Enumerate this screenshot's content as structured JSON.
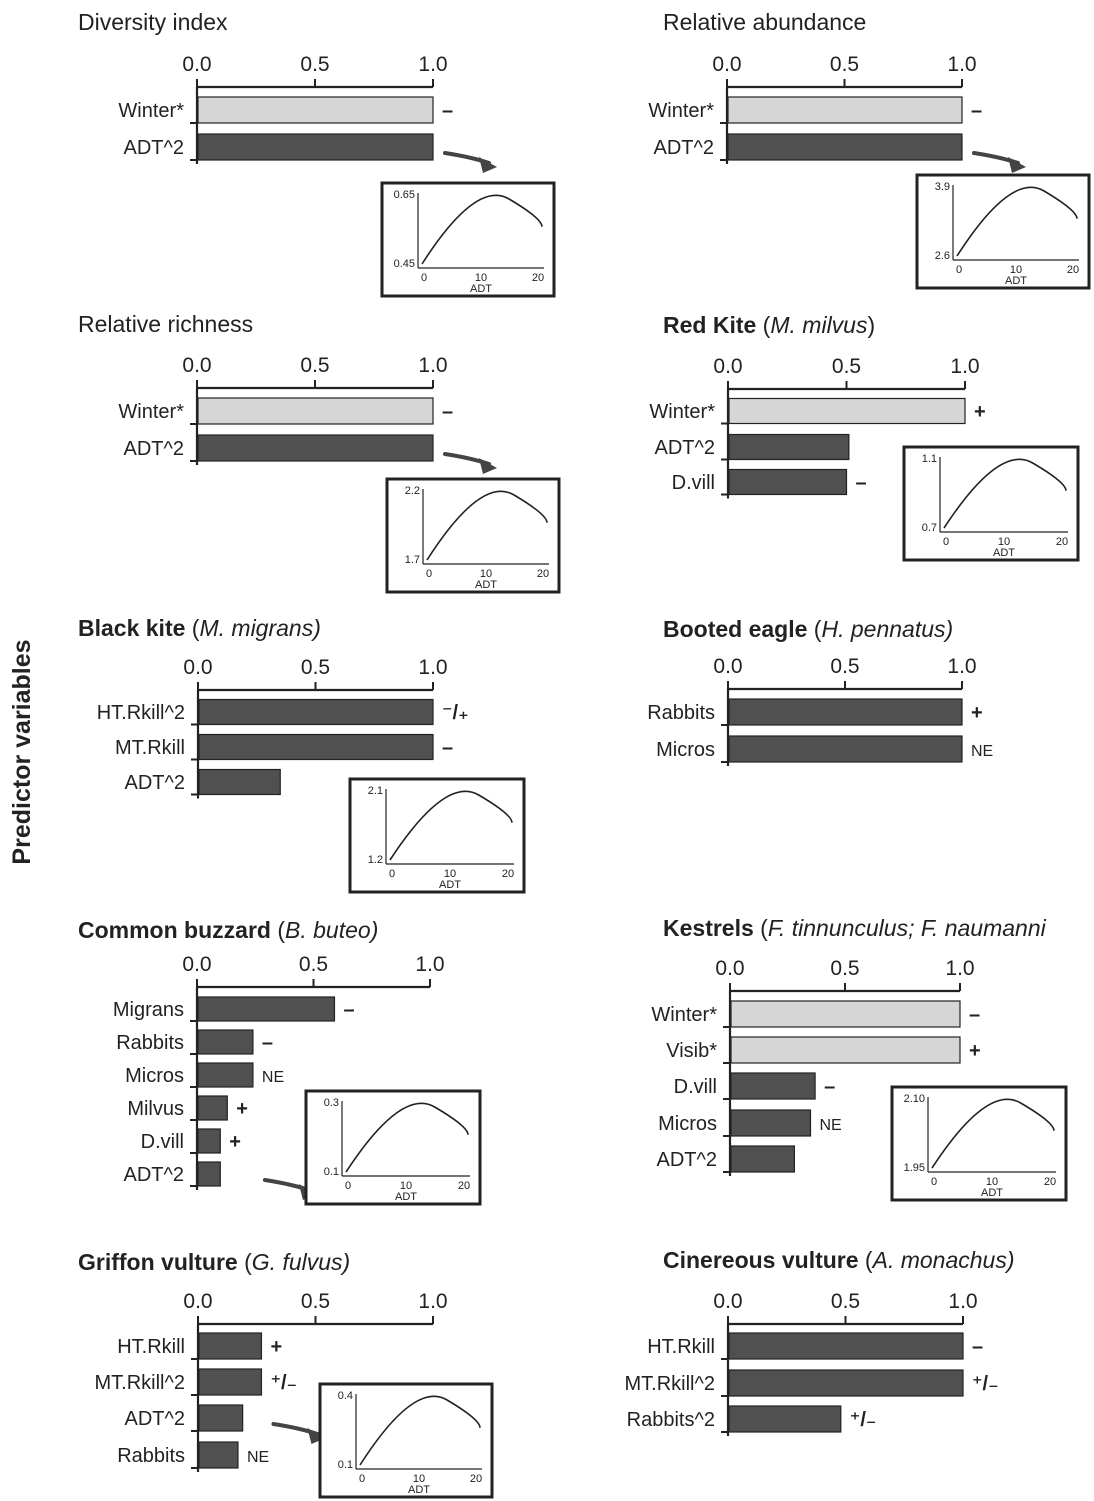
{
  "y_axis_title": "Predictor variables",
  "colors": {
    "winter_bar": "#d6d6d6",
    "dark_bar": "#505050",
    "stroke": "#222222"
  },
  "axis_ticks": [
    "0.0",
    "0.5",
    "1.0"
  ],
  "chart_data": [
    {
      "type": "bar",
      "orientation": "horizontal",
      "title_bold": "",
      "title_plain": "Diversity index",
      "title_italic": "",
      "title_close": "",
      "xlim": [
        0,
        1
      ],
      "bars": [
        {
          "label": "Winter*",
          "value": 1.0,
          "sign": "–",
          "winter": true
        },
        {
          "label": "ADT^2",
          "value": 1.0,
          "sign": "",
          "winter": false
        }
      ],
      "inset": {
        "type": "line",
        "xlabel": "ADT",
        "x_ticks": [
          "0",
          "10",
          "20"
        ],
        "y_ticks": [
          "0.45",
          "0.65"
        ]
      }
    },
    {
      "type": "bar",
      "orientation": "horizontal",
      "title_bold": "",
      "title_plain": "Relative abundance",
      "title_italic": "",
      "title_close": "",
      "xlim": [
        0,
        1
      ],
      "bars": [
        {
          "label": "Winter*",
          "value": 1.0,
          "sign": "–",
          "winter": true
        },
        {
          "label": "ADT^2",
          "value": 1.0,
          "sign": "",
          "winter": false
        }
      ],
      "inset": {
        "type": "line",
        "xlabel": "ADT",
        "x_ticks": [
          "0",
          "10",
          "20"
        ],
        "y_ticks": [
          "2.6",
          "3.9"
        ]
      }
    },
    {
      "type": "bar",
      "orientation": "horizontal",
      "title_bold": "",
      "title_plain": "Relative richness",
      "title_italic": "",
      "title_close": "",
      "xlim": [
        0,
        1
      ],
      "bars": [
        {
          "label": "Winter*",
          "value": 1.0,
          "sign": "–",
          "winter": true
        },
        {
          "label": "ADT^2",
          "value": 1.0,
          "sign": "",
          "winter": false
        }
      ],
      "inset": {
        "type": "line",
        "xlabel": "ADT",
        "x_ticks": [
          "0",
          "10",
          "20"
        ],
        "y_ticks": [
          "1.7",
          "2.2"
        ]
      }
    },
    {
      "type": "bar",
      "orientation": "horizontal",
      "title_bold": "Red Kite",
      "title_plain": " (",
      "title_italic": "M. milvus",
      "title_close": ")",
      "xlim": [
        0,
        1
      ],
      "bars": [
        {
          "label": "Winter*",
          "value": 1.0,
          "sign": "+",
          "winter": true
        },
        {
          "label": "ADT^2",
          "value": 0.51,
          "sign": "",
          "winter": false
        },
        {
          "label": "D.vill",
          "value": 0.5,
          "sign": "–",
          "winter": false
        }
      ],
      "inset": {
        "type": "line",
        "xlabel": "ADT",
        "x_ticks": [
          "0",
          "10",
          "20"
        ],
        "y_ticks": [
          "0.7",
          "1.1"
        ]
      }
    },
    {
      "type": "bar",
      "orientation": "horizontal",
      "title_bold": "Black kite",
      "title_plain": " (",
      "title_italic": "M. migrans)",
      "title_close": "",
      "xlim": [
        0,
        1
      ],
      "bars": [
        {
          "label": "HT.Rkill^2",
          "value": 1.0,
          "sign": "⁻/₊",
          "winter": false
        },
        {
          "label": "MT.Rkill",
          "value": 1.0,
          "sign": "–",
          "winter": false
        },
        {
          "label": "ADT^2",
          "value": 0.35,
          "sign": "",
          "winter": false
        }
      ],
      "inset": {
        "type": "line",
        "xlabel": "ADT",
        "x_ticks": [
          "0",
          "10",
          "20"
        ],
        "y_ticks": [
          "1.2",
          "2.1"
        ]
      }
    },
    {
      "type": "bar",
      "orientation": "horizontal",
      "title_bold": "Booted eagle",
      "title_plain": " (",
      "title_italic": "H. pennatus)",
      "title_close": "",
      "xlim": [
        0,
        1
      ],
      "bars": [
        {
          "label": "Rabbits",
          "value": 1.0,
          "sign": "+",
          "winter": false
        },
        {
          "label": "Micros",
          "value": 1.0,
          "sign": "NE",
          "winter": false
        }
      ],
      "inset": null
    },
    {
      "type": "bar",
      "orientation": "horizontal",
      "title_bold": "Common buzzard",
      "title_plain": " (",
      "title_italic": "B. buteo)",
      "title_close": "",
      "xlim": [
        0,
        1
      ],
      "bars": [
        {
          "label": "Migrans",
          "value": 0.59,
          "sign": "–",
          "winter": false
        },
        {
          "label": "Rabbits",
          "value": 0.24,
          "sign": "–",
          "winter": false
        },
        {
          "label": "Micros",
          "value": 0.24,
          "sign": "NE",
          "winter": false
        },
        {
          "label": "Milvus",
          "value": 0.13,
          "sign": "+",
          "winter": false
        },
        {
          "label": "D.vill",
          "value": 0.1,
          "sign": "+",
          "winter": false
        },
        {
          "label": "ADT^2",
          "value": 0.1,
          "sign": "",
          "winter": false
        }
      ],
      "inset": {
        "type": "line",
        "xlabel": "ADT",
        "x_ticks": [
          "0",
          "10",
          "20"
        ],
        "y_ticks": [
          "0.1",
          "0.3"
        ]
      }
    },
    {
      "type": "bar",
      "orientation": "horizontal",
      "title_bold": "Kestrels",
      "title_plain": " (",
      "title_italic": "F. tinnunculus; F. naumanni",
      "title_close": "",
      "xlim": [
        0,
        1
      ],
      "bars": [
        {
          "label": "Winter*",
          "value": 1.0,
          "sign": "–",
          "winter": true
        },
        {
          "label": "Visib*",
          "value": 1.0,
          "sign": "+",
          "winter": true
        },
        {
          "label": "D.vill",
          "value": 0.37,
          "sign": "–",
          "winter": false
        },
        {
          "label": "Micros",
          "value": 0.35,
          "sign": "NE",
          "winter": false
        },
        {
          "label": "ADT^2",
          "value": 0.28,
          "sign": "",
          "winter": false
        }
      ],
      "inset": {
        "type": "line",
        "xlabel": "ADT",
        "x_ticks": [
          "0",
          "10",
          "20"
        ],
        "y_ticks": [
          "1.95",
          "2.10"
        ]
      }
    },
    {
      "type": "bar",
      "orientation": "horizontal",
      "title_bold": "Griffon vulture",
      "title_plain": " (",
      "title_italic": "G. fulvus)",
      "title_close": "",
      "xlim": [
        0,
        1
      ],
      "bars": [
        {
          "label": "HT.Rkill",
          "value": 0.27,
          "sign": "+",
          "winter": false
        },
        {
          "label": "MT.Rkill^2",
          "value": 0.27,
          "sign": "⁺/₋",
          "winter": false
        },
        {
          "label": "ADT^2",
          "value": 0.19,
          "sign": "",
          "winter": false
        },
        {
          "label": "Rabbits",
          "value": 0.17,
          "sign": "NE",
          "winter": false
        }
      ],
      "inset": {
        "type": "line",
        "xlabel": "ADT",
        "x_ticks": [
          "0",
          "10",
          "20"
        ],
        "y_ticks": [
          "0.1",
          "0.4"
        ]
      }
    },
    {
      "type": "bar",
      "orientation": "horizontal",
      "title_bold": "Cinereous vulture",
      "title_plain": " (",
      "title_italic": "A. monachus)",
      "title_close": "",
      "xlim": [
        0,
        1
      ],
      "bars": [
        {
          "label": "HT.Rkill",
          "value": 1.0,
          "sign": "–",
          "winter": false
        },
        {
          "label": "MT.Rkill^2",
          "value": 1.0,
          "sign": "⁺/₋",
          "winter": false
        },
        {
          "label": "Rabbits^2",
          "value": 0.48,
          "sign": "⁺/₋",
          "winter": false
        }
      ],
      "inset": null
    }
  ]
}
